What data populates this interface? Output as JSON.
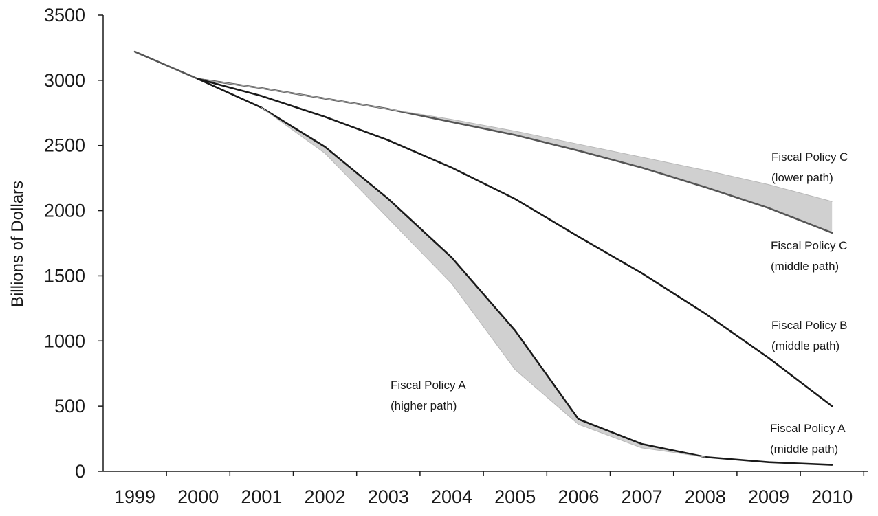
{
  "chart_data": {
    "type": "line",
    "title": "",
    "xlabel": "",
    "ylabel": "Billions of Dollars",
    "ylim": [
      0,
      3500
    ],
    "y_ticks": [
      0,
      500,
      1000,
      1500,
      2000,
      2500,
      3000,
      3500
    ],
    "x_ticks": [
      1999,
      2000,
      2001,
      2002,
      2003,
      2004,
      2005,
      2006,
      2007,
      2008,
      2009,
      2010
    ],
    "grid": false,
    "series": [
      {
        "name": "Fiscal Policy C (middle path)",
        "x": [
          1999,
          2000,
          2001,
          2002,
          2003,
          2004,
          2005,
          2006,
          2007,
          2008,
          2009,
          2010
        ],
        "values": [
          3220,
          3010,
          2940,
          2860,
          2780,
          2680,
          2580,
          2460,
          2330,
          2180,
          2020,
          1830
        ]
      },
      {
        "name": "Fiscal Policy C (lower path)",
        "x": [
          2000,
          2001,
          2002,
          2003,
          2004,
          2005,
          2006,
          2007,
          2008,
          2009,
          2010
        ],
        "values": [
          3010,
          2940,
          2860,
          2780,
          2700,
          2610,
          2510,
          2410,
          2310,
          2200,
          2070
        ]
      },
      {
        "name": "Fiscal Policy B (middle path)",
        "x": [
          2000,
          2001,
          2002,
          2003,
          2004,
          2005,
          2006,
          2007,
          2008,
          2009,
          2010
        ],
        "values": [
          3010,
          2880,
          2720,
          2540,
          2330,
          2090,
          1800,
          1520,
          1210,
          870,
          500
        ]
      },
      {
        "name": "Fiscal Policy A (middle path)",
        "x": [
          2000,
          2001,
          2002,
          2003,
          2004,
          2005,
          2006,
          2007,
          2008,
          2009,
          2010
        ],
        "values": [
          3010,
          2790,
          2490,
          2090,
          1640,
          1080,
          400,
          210,
          110,
          70,
          50
        ]
      },
      {
        "name": "Fiscal Policy A (higher path)",
        "x": [
          2001,
          2002,
          2003,
          2004,
          2005,
          2006,
          2007,
          2008
        ],
        "values": [
          2790,
          2440,
          1940,
          1440,
          780,
          360,
          180,
          110
        ]
      }
    ],
    "annotations": [
      {
        "text": [
          "Fiscal Policy C",
          "(lower path)"
        ],
        "series": "Fiscal Policy C (lower path)"
      },
      {
        "text": [
          "Fiscal Policy C",
          "(middle path)"
        ],
        "series": "Fiscal Policy C (middle path)"
      },
      {
        "text": [
          "Fiscal Policy B",
          "(middle path)"
        ],
        "series": "Fiscal Policy B (middle path)"
      },
      {
        "text": [
          "Fiscal Policy A",
          "(higher path)"
        ],
        "series": "Fiscal Policy A (higher path)"
      },
      {
        "text": [
          "Fiscal Policy A",
          "(middle path)"
        ],
        "series": "Fiscal Policy A (middle path)"
      }
    ],
    "colors": {
      "line": "#1a1a1a",
      "line_c": "#555555",
      "band": "#c8c8c8"
    }
  }
}
